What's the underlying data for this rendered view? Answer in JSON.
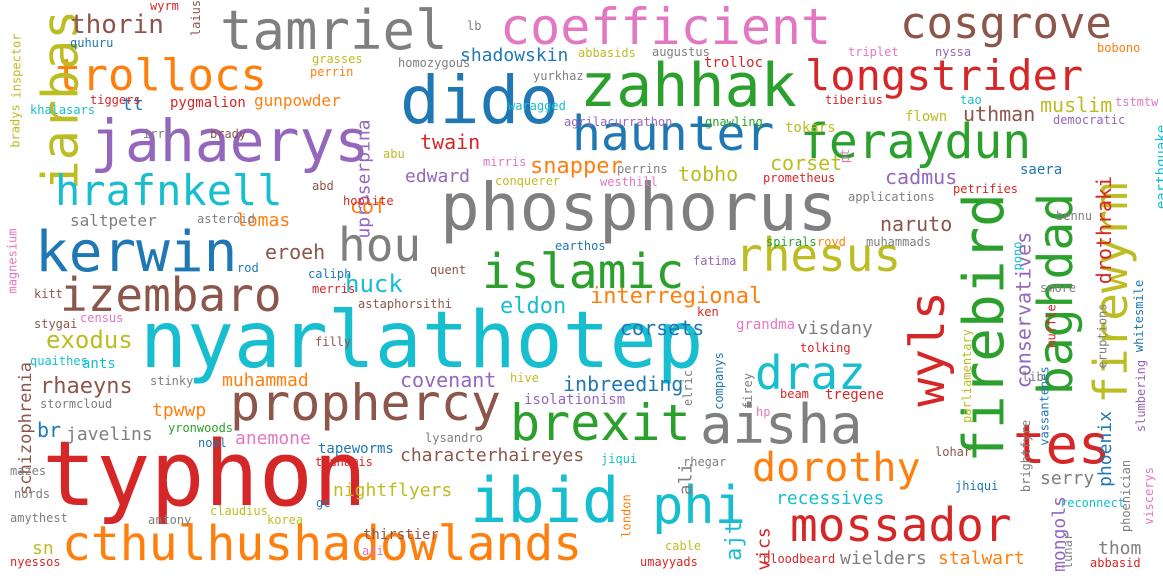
{
  "palette": {
    "blue": "#1f77b4",
    "orange": "#ff7f0e",
    "green": "#2ca02c",
    "red": "#d62728",
    "purple": "#9467bd",
    "brown": "#8c564b",
    "pink": "#e377c2",
    "gray": "#7f7f7f",
    "olive": "#bcbd22",
    "cyan": "#17becf"
  },
  "words": [
    "nyarlathotep",
    "phosphorus",
    "typhon",
    "cthulhushadowlands",
    "coefficient",
    "tamriel",
    "cosgrove",
    "dido",
    "zahhak",
    "jahaerys",
    "longstrider",
    "trollocs",
    "iarbas",
    "haunter",
    "feraydun",
    "hrafnkell",
    "kerwin",
    "hou",
    "islamic",
    "rhesus",
    "izembaro",
    "firebird",
    "baghdad",
    "firewyrm",
    "wyls",
    "tes",
    "prophercy",
    "aisha",
    "brexit",
    "draz",
    "ibid",
    "phi",
    "mossador",
    "dorothy",
    "thorin",
    "shadowskin",
    "uproserpina",
    "muslim",
    "twain",
    "snapper",
    "tobho",
    "corset",
    "cadmus",
    "uthman",
    "edward",
    "cof",
    "naruto",
    "lomas",
    "eroeh",
    "huck",
    "interregional",
    "eldon",
    "corsets",
    "conservatives",
    "drothraki",
    "exodus",
    "covenant",
    "inbreeding",
    "rhaeyns",
    "muhammad",
    "tpwwp",
    "anemone",
    "javelins",
    "br",
    "characterhaireyes",
    "nightflyers",
    "recessives",
    "serry",
    "mongols",
    "phoenix",
    "thom",
    "wielders",
    "stalwart",
    "schizophrenia",
    "visdany",
    "grandma",
    "gunpowder",
    "pygmalion",
    "tt",
    "saltpeter",
    "isolationism",
    "tregene",
    "astaphorsithi",
    "spirals",
    "fatima",
    "applications",
    "petrifies",
    "earthquake",
    "saera",
    "tolking",
    "ali",
    "ajt",
    "vics",
    "sn",
    "korea",
    "thirstier",
    "ants",
    "quaithes",
    "stormcloud",
    "tapeworms",
    "tsunamis",
    "rhegar",
    "hive",
    "muffle",
    "eruptions",
    "slumbering",
    "whitesmile",
    "parliamentary",
    "vassantenes",
    "brightfyre",
    "viscerys",
    "reconnect",
    "lunar",
    "phoenician",
    "abbasid",
    "bloodbeard",
    "umayyads",
    "cable",
    "london",
    "amythest",
    "antony",
    "claudius",
    "nyessos",
    "nords",
    "mazes",
    "noal",
    "yronwoods",
    "stinky",
    "filly",
    "stygai",
    "kitt",
    "magnesium",
    "census",
    "hoplite",
    "abd",
    "asteroid",
    "rod",
    "caliph",
    "merris",
    "quent",
    "earthos",
    "royd",
    "muhammads",
    "bennu",
    "pono",
    "smore",
    "tokars",
    "flown",
    "democratic",
    "tiberius",
    "tao",
    "tstmtw",
    "nyssa",
    "triplet",
    "bobono",
    "augustus",
    "abbasids",
    "trolloc",
    "yurkhaz",
    "agrilacurrathon",
    "gnawling",
    "mirris",
    "perrins",
    "westhill",
    "conquerer",
    "prometheus",
    "waragged",
    "homozygous",
    "grasses",
    "perrin",
    "tiggers",
    "khalasars",
    "irri",
    "brady",
    "bradys",
    "inspector",
    "quhuru",
    "wyrm",
    "laius",
    "lb",
    "abu",
    "pt",
    "jiqui",
    "jhiqui",
    "lysandro",
    "elric",
    "companys",
    "firey",
    "hp",
    "beam",
    "lohar",
    "ken",
    "lib",
    "gc",
    "azi"
  ]
}
